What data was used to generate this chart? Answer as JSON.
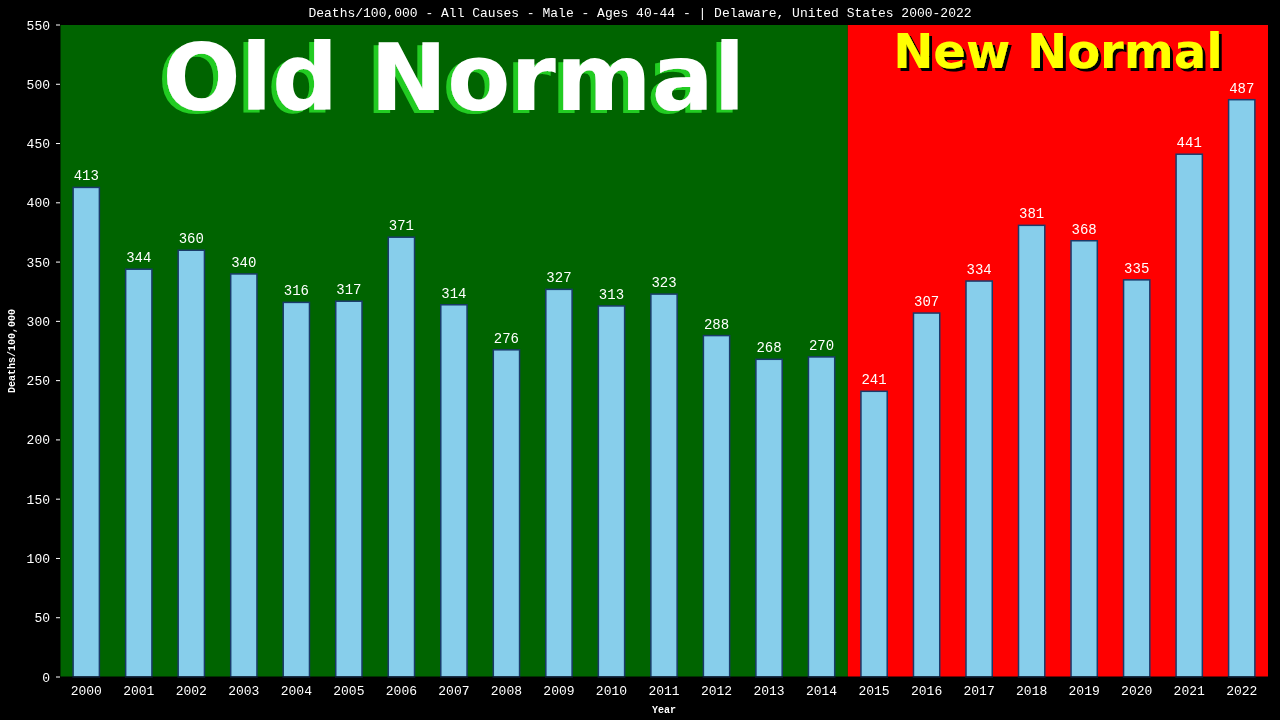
{
  "chart_data": {
    "type": "bar",
    "title": "Deaths/100,000 - All Causes - Male - Ages 40-44 -  | Delaware, United States 2000-2022",
    "xlabel": "Year",
    "ylabel": "Deaths/100,000",
    "categories": [
      "2000",
      "2001",
      "2002",
      "2003",
      "2004",
      "2005",
      "2006",
      "2007",
      "2008",
      "2009",
      "2010",
      "2011",
      "2012",
      "2013",
      "2014",
      "2015",
      "2016",
      "2017",
      "2018",
      "2019",
      "2020",
      "2021",
      "2022"
    ],
    "values": [
      413,
      344,
      360,
      340,
      316,
      317,
      371,
      314,
      276,
      327,
      313,
      323,
      288,
      268,
      270,
      241,
      307,
      334,
      381,
      368,
      335,
      441,
      487
    ],
    "color": "#87ceeb",
    "ylim": [
      0,
      550
    ],
    "yticks": [
      0,
      50,
      100,
      150,
      200,
      250,
      300,
      350,
      400,
      450,
      500,
      550
    ],
    "grid": false,
    "data_labels": true,
    "bands": [
      {
        "axis": "x",
        "from": "2000",
        "to": "2014",
        "label": "Old Normal",
        "color": "#006400"
      },
      {
        "axis": "x",
        "from": "2015",
        "to": "2022",
        "label": "New Normal",
        "color": "#ff0000"
      }
    ]
  }
}
